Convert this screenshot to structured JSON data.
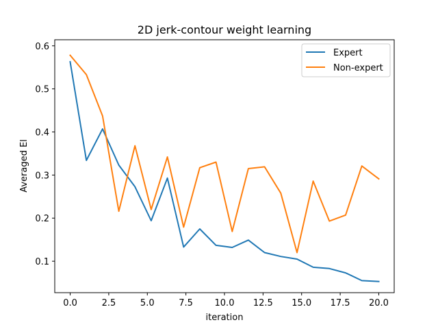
{
  "chart_data": {
    "type": "line",
    "title": "2D jerk-contour weight learning",
    "xlabel": "iteration",
    "ylabel": "Averaged El",
    "xlim": [
      -1.0,
      21.0
    ],
    "ylim": [
      0.027,
      0.614
    ],
    "xticks": [
      0.0,
      2.5,
      5.0,
      7.5,
      10.0,
      12.5,
      15.0,
      17.5,
      20.0
    ],
    "xtick_labels": [
      "0.0",
      "2.5",
      "5.0",
      "7.5",
      "10.0",
      "12.5",
      "15.0",
      "17.5",
      "20.0"
    ],
    "yticks": [
      0.1,
      0.2,
      0.3,
      0.4,
      0.5,
      0.6
    ],
    "ytick_labels": [
      "0.1",
      "0.2",
      "0.3",
      "0.4",
      "0.5",
      "0.6"
    ],
    "legend_position": "top-right",
    "x": [
      0.0,
      1.05,
      2.1,
      3.15,
      4.2,
      5.25,
      6.3,
      7.35,
      8.4,
      9.45,
      10.5,
      11.55,
      12.6,
      13.65,
      14.7,
      15.75,
      16.8,
      17.85,
      18.9,
      20.0
    ],
    "series": [
      {
        "name": "Expert",
        "color": "#1f77b4",
        "values": [
          0.563,
          0.334,
          0.407,
          0.323,
          0.273,
          0.194,
          0.293,
          0.133,
          0.175,
          0.137,
          0.132,
          0.149,
          0.12,
          0.111,
          0.105,
          0.086,
          0.083,
          0.073,
          0.055,
          0.053
        ]
      },
      {
        "name": "Non-expert",
        "color": "#ff7f0e",
        "values": [
          0.578,
          0.533,
          0.437,
          0.216,
          0.368,
          0.22,
          0.342,
          0.179,
          0.317,
          0.33,
          0.169,
          0.315,
          0.319,
          0.258,
          0.12,
          0.286,
          0.193,
          0.207,
          0.321,
          0.291
        ]
      }
    ]
  }
}
